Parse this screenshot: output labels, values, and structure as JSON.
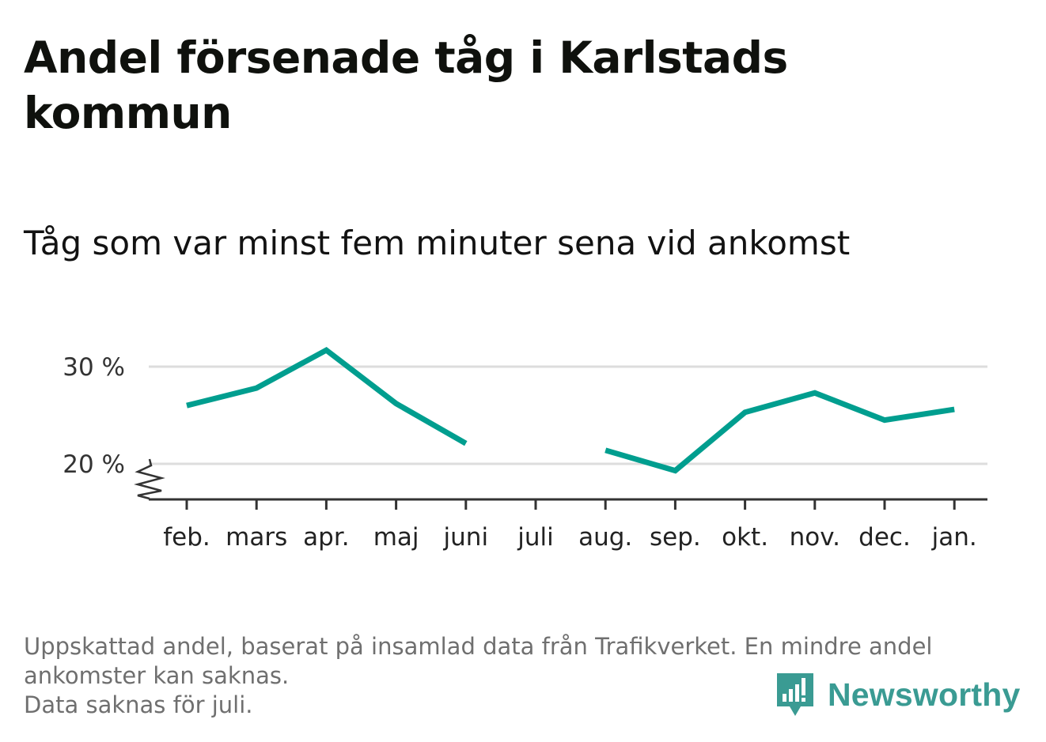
{
  "title": "Andel försenade tåg i Karlstads kommun",
  "subtitle": "Tåg som var minst fem minuter sena vid ankomst",
  "caption_lines": [
    "Uppskattad andel, baserat på insamlad data från Trafikverket. En mindre andel",
    "ankomster kan saknas.",
    "Data saknas för juli."
  ],
  "brand": {
    "name": "Newsworthy",
    "color": "#3a9b93"
  },
  "colors": {
    "line": "#009e8f",
    "grid": "#dddddd",
    "axis": "#333333"
  },
  "chart_data": {
    "type": "line",
    "categories": [
      "feb.",
      "mars",
      "apr.",
      "maj",
      "juni",
      "juli",
      "aug.",
      "sep.",
      "okt.",
      "nov.",
      "dec.",
      "jan."
    ],
    "series": [
      {
        "values": [
          26.0,
          27.8,
          31.7,
          26.2,
          22.1,
          null,
          21.4,
          19.3,
          25.3,
          27.3,
          24.5,
          25.6
        ]
      }
    ],
    "yticks": [
      20,
      30
    ],
    "ytick_labels": [
      "20 %",
      "30 %"
    ],
    "ylim": [
      16.5,
      34
    ],
    "axis_break": true,
    "grid": true,
    "xlabel": "",
    "ylabel": ""
  }
}
